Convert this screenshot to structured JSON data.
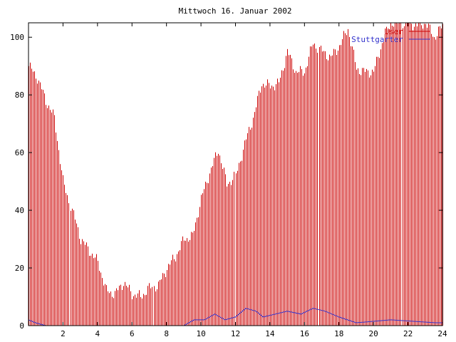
{
  "chart_data": {
    "type": "bar",
    "title": "Mittwoch 16. Januar 2002",
    "xlabel": "",
    "ylabel": "",
    "xlim": [
      0,
      24
    ],
    "ylim": [
      0,
      105
    ],
    "xticks": [
      "2",
      "4",
      "6",
      "8",
      "10",
      "12",
      "14",
      "16",
      "18",
      "20",
      "22",
      "24"
    ],
    "yticks": [
      "0",
      "20",
      "40",
      "60",
      "80",
      "100"
    ],
    "grid": false,
    "legend_position": "top-right",
    "series": [
      {
        "name": "User",
        "style": "impulses",
        "color": "#cc0000",
        "points": [
          [
            0,
            90
          ],
          [
            0.5,
            86
          ],
          [
            1,
            78
          ],
          [
            1.5,
            72
          ],
          [
            2,
            50
          ],
          [
            2.5,
            40
          ],
          [
            3,
            30
          ],
          [
            3.5,
            26
          ],
          [
            4,
            22
          ],
          [
            4.5,
            12
          ],
          [
            5,
            11
          ],
          [
            5.5,
            15
          ],
          [
            6,
            11
          ],
          [
            6.5,
            10
          ],
          [
            7,
            13
          ],
          [
            7.5,
            14
          ],
          [
            8,
            20
          ],
          [
            8.5,
            24
          ],
          [
            9,
            30
          ],
          [
            9.5,
            31
          ],
          [
            10,
            44
          ],
          [
            10.5,
            53
          ],
          [
            11,
            61
          ],
          [
            11.5,
            49
          ],
          [
            12,
            52
          ],
          [
            12.5,
            63
          ],
          [
            13,
            72
          ],
          [
            13.5,
            84
          ],
          [
            14,
            83
          ],
          [
            14.5,
            84
          ],
          [
            15,
            95
          ],
          [
            15.5,
            88
          ],
          [
            16,
            88
          ],
          [
            16.5,
            98
          ],
          [
            17,
            95
          ],
          [
            17.5,
            93
          ],
          [
            18,
            97
          ],
          [
            18.5,
            103
          ],
          [
            19,
            89
          ],
          [
            19.5,
            88
          ],
          [
            20,
            88
          ],
          [
            20.5,
            98
          ],
          [
            21,
            105
          ],
          [
            21.5,
            105
          ],
          [
            22,
            105
          ],
          [
            22.5,
            104
          ],
          [
            23,
            105
          ],
          [
            23.5,
            100
          ],
          [
            24,
            104
          ]
        ]
      },
      {
        "name": "Stuttgarter",
        "style": "line",
        "color": "#3333cc",
        "points": [
          [
            0,
            2
          ],
          [
            0.4,
            1
          ],
          [
            1,
            0
          ],
          [
            9,
            0
          ],
          [
            9.6,
            2
          ],
          [
            10.2,
            2
          ],
          [
            10.8,
            4
          ],
          [
            11.4,
            2
          ],
          [
            12,
            3
          ],
          [
            12.6,
            6
          ],
          [
            13.2,
            5
          ],
          [
            13.6,
            3
          ],
          [
            15,
            5
          ],
          [
            15.8,
            4
          ],
          [
            16.5,
            6
          ],
          [
            17.2,
            5
          ],
          [
            18,
            3
          ],
          [
            19,
            1
          ],
          [
            21,
            2
          ],
          [
            23.6,
            1
          ],
          [
            24,
            1
          ]
        ]
      }
    ]
  }
}
